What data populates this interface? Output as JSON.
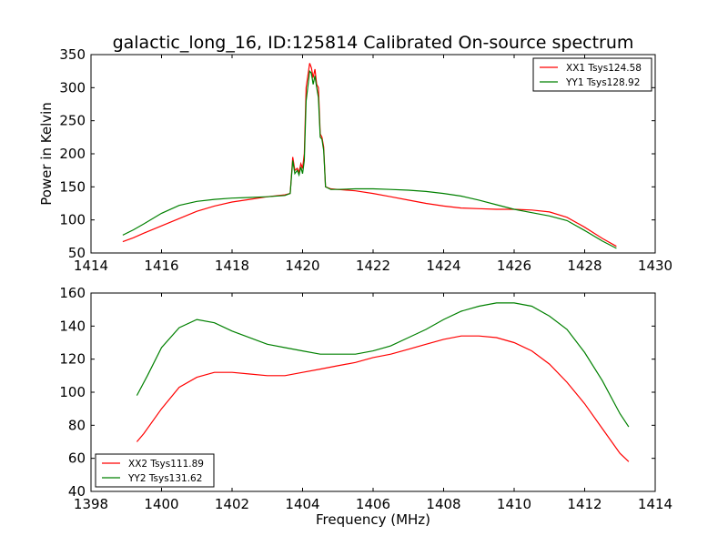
{
  "figure_title": "galactic_long_16, ID:125814 Calibrated On-source spectrum",
  "chart_data": [
    {
      "type": "line",
      "title": "galactic_long_16, ID:125814 Calibrated On-source spectrum",
      "xlabel": "",
      "ylabel": "Power in Kelvin",
      "xlim": [
        1414,
        1430
      ],
      "ylim": [
        50,
        350
      ],
      "xticks": [
        1414,
        1416,
        1418,
        1420,
        1422,
        1424,
        1426,
        1428,
        1430
      ],
      "yticks": [
        50,
        100,
        150,
        200,
        250,
        300,
        350
      ],
      "legend_position": "top-right",
      "grid": false,
      "series": [
        {
          "name": "XX1 Tsys124.58",
          "color": "#ff0000",
          "points": [
            [
              1414.9,
              67
            ],
            [
              1415.2,
              73
            ],
            [
              1415.5,
              80
            ],
            [
              1416.0,
              91
            ],
            [
              1416.5,
              102
            ],
            [
              1417.0,
              113
            ],
            [
              1417.5,
              121
            ],
            [
              1418.0,
              127
            ],
            [
              1418.5,
              131
            ],
            [
              1419.0,
              135
            ],
            [
              1419.5,
              138
            ],
            [
              1419.65,
              140
            ],
            [
              1419.72,
              195
            ],
            [
              1419.78,
              175
            ],
            [
              1419.85,
              178
            ],
            [
              1419.9,
              172
            ],
            [
              1419.95,
              185
            ],
            [
              1420.0,
              178
            ],
            [
              1420.05,
              200
            ],
            [
              1420.1,
              300
            ],
            [
              1420.2,
              337
            ],
            [
              1420.25,
              330
            ],
            [
              1420.3,
              315
            ],
            [
              1420.35,
              328
            ],
            [
              1420.4,
              305
            ],
            [
              1420.45,
              300
            ],
            [
              1420.5,
              230
            ],
            [
              1420.55,
              225
            ],
            [
              1420.6,
              210
            ],
            [
              1420.65,
              150
            ],
            [
              1420.8,
              147
            ],
            [
              1421.0,
              146
            ],
            [
              1421.5,
              144
            ],
            [
              1422.0,
              140
            ],
            [
              1422.5,
              135
            ],
            [
              1423.0,
              130
            ],
            [
              1423.5,
              125
            ],
            [
              1424.0,
              121
            ],
            [
              1424.5,
              118
            ],
            [
              1425.0,
              117
            ],
            [
              1425.5,
              116
            ],
            [
              1426.0,
              116
            ],
            [
              1426.5,
              115
            ],
            [
              1427.0,
              112
            ],
            [
              1427.5,
              104
            ],
            [
              1428.0,
              89
            ],
            [
              1428.5,
              72
            ],
            [
              1428.9,
              60
            ]
          ]
        },
        {
          "name": "YY1 Tsys128.92",
          "color": "#008000",
          "points": [
            [
              1414.9,
              77
            ],
            [
              1415.2,
              85
            ],
            [
              1415.5,
              94
            ],
            [
              1416.0,
              110
            ],
            [
              1416.5,
              122
            ],
            [
              1417.0,
              128
            ],
            [
              1417.5,
              131
            ],
            [
              1418.0,
              133
            ],
            [
              1418.5,
              134
            ],
            [
              1419.0,
              135
            ],
            [
              1419.5,
              137
            ],
            [
              1419.65,
              140
            ],
            [
              1419.72,
              190
            ],
            [
              1419.78,
              170
            ],
            [
              1419.85,
              175
            ],
            [
              1419.9,
              168
            ],
            [
              1419.95,
              180
            ],
            [
              1420.0,
              170
            ],
            [
              1420.05,
              190
            ],
            [
              1420.1,
              280
            ],
            [
              1420.2,
              325
            ],
            [
              1420.25,
              322
            ],
            [
              1420.3,
              305
            ],
            [
              1420.35,
              318
            ],
            [
              1420.4,
              300
            ],
            [
              1420.45,
              285
            ],
            [
              1420.5,
              225
            ],
            [
              1420.55,
              222
            ],
            [
              1420.6,
              205
            ],
            [
              1420.65,
              150
            ],
            [
              1420.8,
              146
            ],
            [
              1421.0,
              146
            ],
            [
              1421.5,
              147
            ],
            [
              1422.0,
              147
            ],
            [
              1422.5,
              146
            ],
            [
              1423.0,
              145
            ],
            [
              1423.5,
              143
            ],
            [
              1424.0,
              140
            ],
            [
              1424.5,
              136
            ],
            [
              1425.0,
              130
            ],
            [
              1425.5,
              123
            ],
            [
              1426.0,
              116
            ],
            [
              1426.5,
              111
            ],
            [
              1427.0,
              106
            ],
            [
              1427.5,
              99
            ],
            [
              1428.0,
              84
            ],
            [
              1428.5,
              68
            ],
            [
              1428.9,
              57
            ]
          ]
        }
      ]
    },
    {
      "type": "line",
      "title": "",
      "xlabel": "Frequency (MHz)",
      "ylabel": "",
      "xlim": [
        1398,
        1414
      ],
      "ylim": [
        40,
        160
      ],
      "xticks": [
        1398,
        1400,
        1402,
        1404,
        1406,
        1408,
        1410,
        1412,
        1414
      ],
      "yticks": [
        40,
        60,
        80,
        100,
        120,
        140,
        160
      ],
      "legend_position": "lower-left",
      "grid": false,
      "series": [
        {
          "name": "XX2 Tsys111.89",
          "color": "#ff0000",
          "points": [
            [
              1399.3,
              70
            ],
            [
              1399.5,
              75
            ],
            [
              1400.0,
              90
            ],
            [
              1400.5,
              103
            ],
            [
              1401.0,
              109
            ],
            [
              1401.5,
              112
            ],
            [
              1402.0,
              112
            ],
            [
              1402.5,
              111
            ],
            [
              1403.0,
              110
            ],
            [
              1403.5,
              110
            ],
            [
              1404.0,
              112
            ],
            [
              1404.5,
              114
            ],
            [
              1405.0,
              116
            ],
            [
              1405.5,
              118
            ],
            [
              1406.0,
              121
            ],
            [
              1406.5,
              123
            ],
            [
              1407.0,
              126
            ],
            [
              1407.5,
              129
            ],
            [
              1408.0,
              132
            ],
            [
              1408.5,
              134
            ],
            [
              1409.0,
              134
            ],
            [
              1409.5,
              133
            ],
            [
              1410.0,
              130
            ],
            [
              1410.5,
              125
            ],
            [
              1411.0,
              117
            ],
            [
              1411.5,
              106
            ],
            [
              1412.0,
              93
            ],
            [
              1412.5,
              78
            ],
            [
              1413.0,
              63
            ],
            [
              1413.25,
              58
            ]
          ]
        },
        {
          "name": "YY2 Tsys131.62",
          "color": "#008000",
          "points": [
            [
              1399.3,
              98
            ],
            [
              1399.6,
              110
            ],
            [
              1400.0,
              127
            ],
            [
              1400.5,
              139
            ],
            [
              1401.0,
              144
            ],
            [
              1401.5,
              142
            ],
            [
              1402.0,
              137
            ],
            [
              1402.5,
              133
            ],
            [
              1403.0,
              129
            ],
            [
              1403.5,
              127
            ],
            [
              1404.0,
              125
            ],
            [
              1404.5,
              123
            ],
            [
              1405.0,
              123
            ],
            [
              1405.5,
              123
            ],
            [
              1406.0,
              125
            ],
            [
              1406.5,
              128
            ],
            [
              1407.0,
              133
            ],
            [
              1407.5,
              138
            ],
            [
              1408.0,
              144
            ],
            [
              1408.5,
              149
            ],
            [
              1409.0,
              152
            ],
            [
              1409.5,
              154
            ],
            [
              1410.0,
              154
            ],
            [
              1410.5,
              152
            ],
            [
              1411.0,
              146
            ],
            [
              1411.5,
              138
            ],
            [
              1412.0,
              124
            ],
            [
              1412.5,
              107
            ],
            [
              1413.0,
              87
            ],
            [
              1413.25,
              79
            ]
          ]
        }
      ]
    }
  ]
}
